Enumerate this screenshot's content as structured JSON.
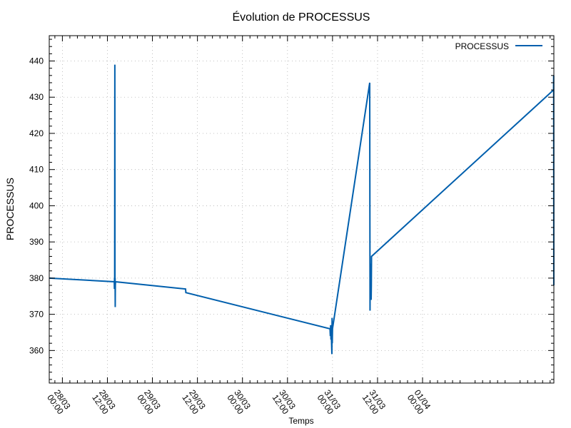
{
  "chart_data": {
    "type": "line",
    "title": "Évolution de PROCESSUS",
    "xlabel": "Temps",
    "ylabel": "PROCESSUS",
    "xlim": [
      "2025-03-27 20:30",
      "2025-04-02 11:00"
    ],
    "ylim": [
      351,
      447
    ],
    "yticks": [
      360,
      370,
      380,
      390,
      400,
      410,
      420,
      430,
      440
    ],
    "xticks": [
      {
        "t": "2025-03-28 00:00",
        "day": "28/03",
        "time": "00:00"
      },
      {
        "t": "2025-03-28 12:00",
        "day": "28/03",
        "time": "12:00"
      },
      {
        "t": "2025-03-29 00:00",
        "day": "29/03",
        "time": "00:00"
      },
      {
        "t": "2025-03-29 12:00",
        "day": "29/03",
        "time": "12:00"
      },
      {
        "t": "2025-03-30 00:00",
        "day": "30/03",
        "time": "00:00"
      },
      {
        "t": "2025-03-30 12:00",
        "day": "30/03",
        "time": "12:00"
      },
      {
        "t": "2025-03-31 00:00",
        "day": "31/03",
        "time": "00:00"
      },
      {
        "t": "2025-03-31 12:00",
        "day": "31/03",
        "time": "12:00"
      },
      {
        "t": "2025-04-01 00:00",
        "day": "01/04",
        "time": "00:00"
      }
    ],
    "grid": true,
    "legend_position": "top-right",
    "series": [
      {
        "name": "PROCESSUS",
        "color": "#005fad",
        "points": [
          [
            "2025-03-27 20:30",
            380
          ],
          [
            "2025-03-28 13:50",
            379
          ],
          [
            "2025-03-28 13:52",
            377
          ],
          [
            "2025-03-28 13:54",
            380
          ],
          [
            "2025-03-28 13:56",
            377
          ],
          [
            "2025-03-28 13:59",
            439
          ],
          [
            "2025-03-28 14:01",
            377
          ],
          [
            "2025-03-28 14:03",
            380
          ],
          [
            "2025-03-28 14:05",
            372
          ],
          [
            "2025-03-28 14:07",
            378
          ],
          [
            "2025-03-28 14:10",
            379
          ],
          [
            "2025-03-29 08:50",
            377
          ],
          [
            "2025-03-29 08:55",
            376
          ],
          [
            "2025-03-30 23:20",
            366
          ],
          [
            "2025-03-30 23:25",
            364
          ],
          [
            "2025-03-30 23:30",
            367
          ],
          [
            "2025-03-30 23:35",
            363
          ],
          [
            "2025-03-30 23:40",
            365
          ],
          [
            "2025-03-30 23:45",
            362
          ],
          [
            "2025-03-30 23:50",
            359
          ],
          [
            "2025-03-30 23:53",
            369
          ],
          [
            "2025-03-30 23:56",
            362
          ],
          [
            "2025-03-31 00:00",
            366
          ],
          [
            "2025-03-31 09:55",
            434
          ],
          [
            "2025-03-31 10:00",
            371
          ],
          [
            "2025-03-31 10:03",
            384
          ],
          [
            "2025-03-31 10:06",
            375
          ],
          [
            "2025-03-31 10:09",
            382
          ],
          [
            "2025-03-31 10:12",
            375
          ],
          [
            "2025-03-31 10:15",
            380
          ],
          [
            "2025-03-31 10:18",
            374
          ],
          [
            "2025-03-31 10:21",
            378
          ],
          [
            "2025-03-31 10:24",
            386
          ],
          [
            "2025-04-02 10:55",
            432
          ],
          [
            "2025-04-02 10:57",
            436
          ],
          [
            "2025-04-02 10:59",
            378
          ]
        ]
      }
    ]
  }
}
